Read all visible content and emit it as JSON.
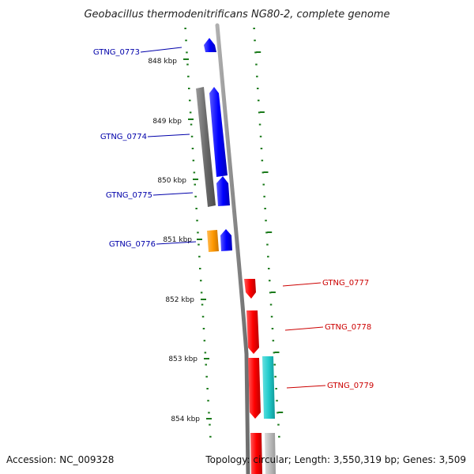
{
  "title": "Geobacillus thermodenitrificans NG80-2, complete genome",
  "footer": {
    "accession": "Accession: NC_009328",
    "topology": "Topology: circular; Length: 3,550,319 bp; Genes: 3,509"
  },
  "scale_ticks": [
    {
      "label": "848 kbp",
      "kbp": 848
    },
    {
      "label": "849 kbp",
      "kbp": 849
    },
    {
      "label": "850 kbp",
      "kbp": 850
    },
    {
      "label": "851 kbp",
      "kbp": 851
    },
    {
      "label": "852 kbp",
      "kbp": 852
    },
    {
      "label": "853 kbp",
      "kbp": 853
    },
    {
      "label": "854 kbp",
      "kbp": 854
    }
  ],
  "genes": [
    {
      "name": "GTNG_0773",
      "strand": "minus",
      "color": "#0000ff"
    },
    {
      "name": "GTNG_0774",
      "strand": "minus",
      "color": "#0000ff"
    },
    {
      "name": "GTNG_0775",
      "strand": "minus",
      "color": "#0000ff"
    },
    {
      "name": "GTNG_0776",
      "strand": "minus",
      "color": "#0000ff"
    },
    {
      "name": "GTNG_0777",
      "strand": "plus",
      "color": "#ff0000"
    },
    {
      "name": "GTNG_0778",
      "strand": "plus",
      "color": "#ff0000"
    },
    {
      "name": "GTNG_0779",
      "strand": "plus",
      "color": "#ff0000"
    }
  ],
  "colors": {
    "minus_label": "#0000aa",
    "plus_label": "#cc0000",
    "backbone": "#8c8c8c",
    "tick": "#1a7a1a",
    "rna_bar": "#707070",
    "orange_feature": "#ff9900",
    "cyan_feature": "#22cccc",
    "light_feature": "#bbbbbb"
  }
}
